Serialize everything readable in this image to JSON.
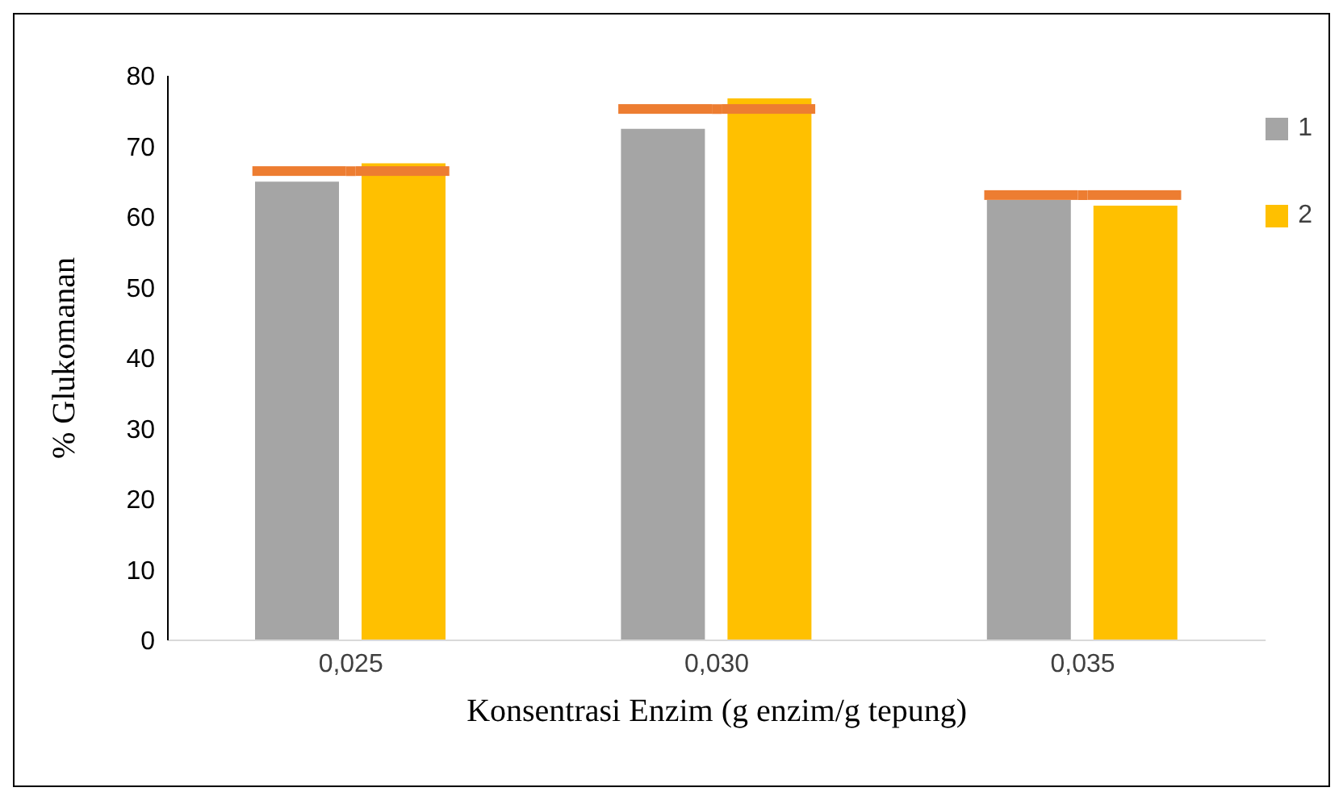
{
  "chart_data": {
    "type": "bar",
    "xlabel": "Konsentrasi Enzim (g enzim/g tepung)",
    "ylabel": "% Glukomanan",
    "categories": [
      "0,025",
      "0,030",
      "0,035"
    ],
    "series": [
      {
        "name": "1",
        "color": "#a5a5a5",
        "values": [
          65.0,
          72.5,
          62.4
        ]
      },
      {
        "name": "2",
        "color": "#ffc000",
        "values": [
          67.6,
          76.8,
          61.6
        ]
      },
      {
        "type": "scatter",
        "marker": "square",
        "color": "#ed7d31",
        "x": [
          "0,025",
          "0,030",
          "0,035"
        ],
        "values": [
          66.5,
          75.3,
          63.1
        ]
      }
    ],
    "ylim": [
      0,
      80
    ],
    "yticks": [
      0,
      10,
      20,
      30,
      40,
      50,
      60,
      70,
      80
    ],
    "grid": false,
    "legend": "top right"
  }
}
